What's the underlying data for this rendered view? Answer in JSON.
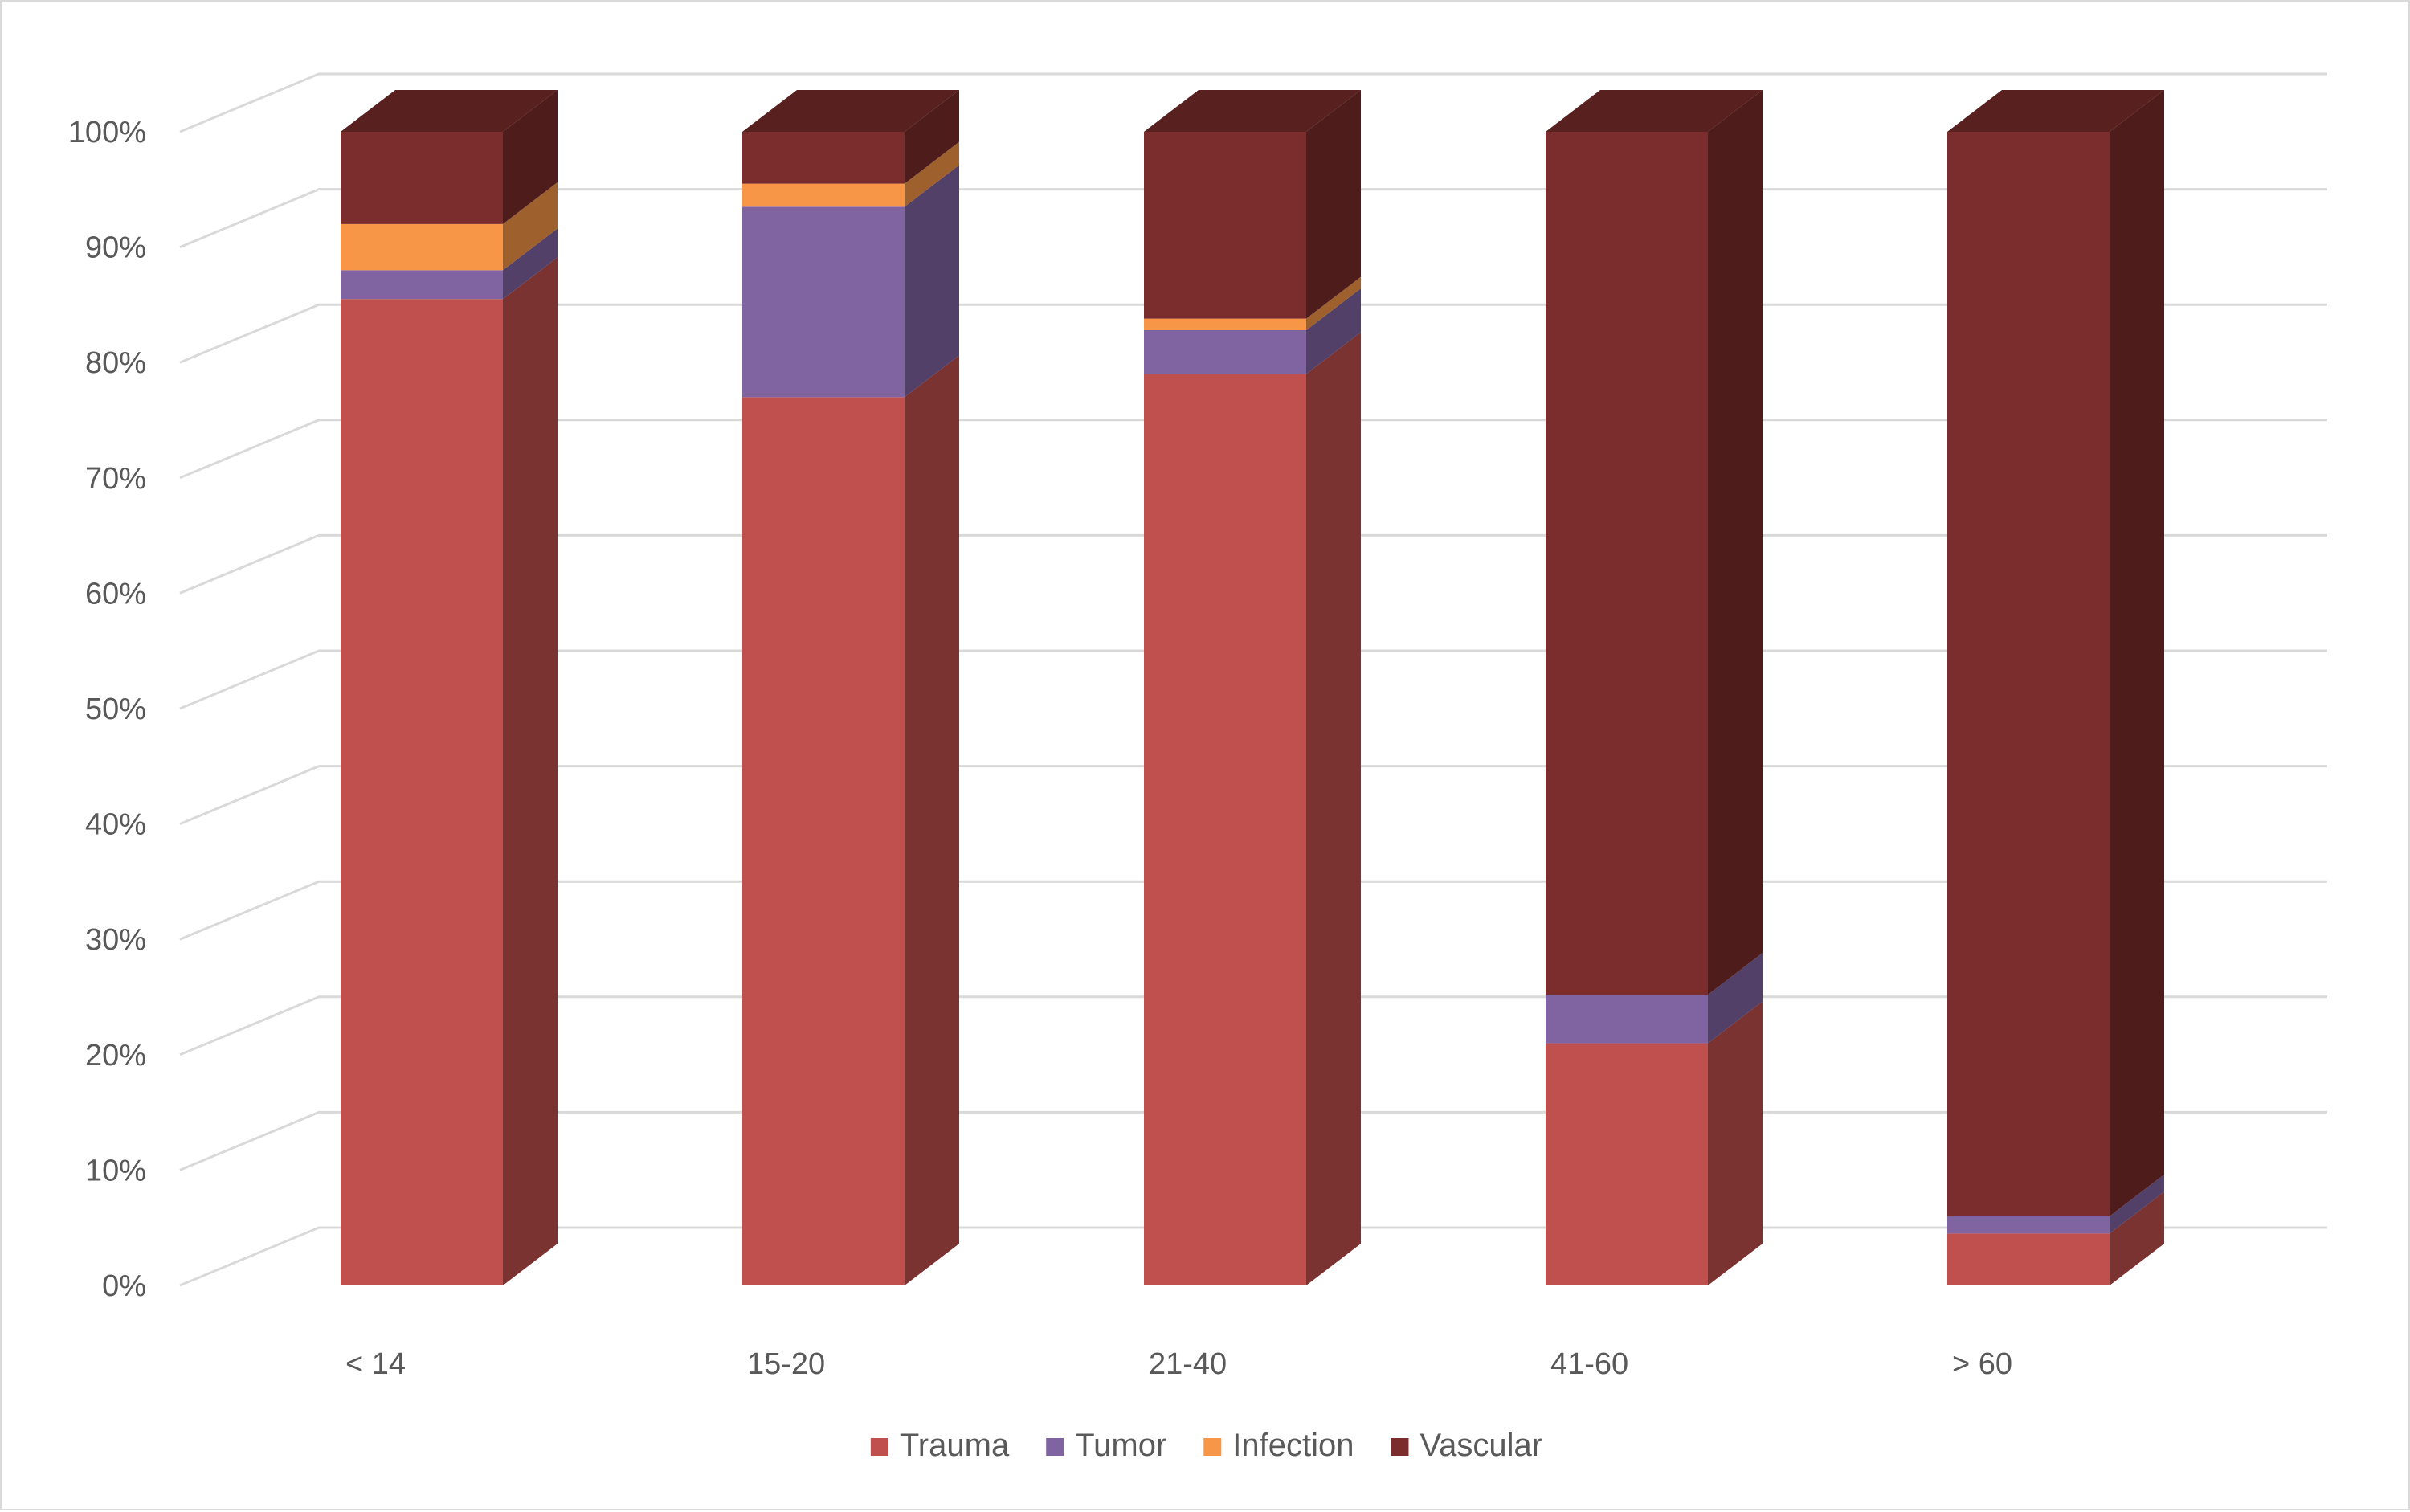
{
  "chart_data": {
    "type": "bar",
    "stacked": true,
    "three_d": true,
    "percent_stacked": true,
    "title": "",
    "xlabel": "",
    "ylabel": "",
    "categories": [
      "< 14",
      "15-20",
      "21-40",
      "41-60",
      "> 60"
    ],
    "y_ticks": [
      "0%",
      "10%",
      "20%",
      "30%",
      "40%",
      "50%",
      "60%",
      "70%",
      "80%",
      "90%",
      "100%"
    ],
    "ylim": [
      0,
      100
    ],
    "grid": true,
    "legend_position": "bottom",
    "series": [
      {
        "name": "Trauma",
        "color": "#c0504d",
        "values": [
          85.5,
          77.0,
          79.0,
          21.0,
          4.5
        ]
      },
      {
        "name": "Tumor",
        "color": "#8064a2",
        "values": [
          2.5,
          16.5,
          3.8,
          4.2,
          1.5
        ]
      },
      {
        "name": "Infection",
        "color": "#f79646",
        "values": [
          4.0,
          2.0,
          1.0,
          0.0,
          0.0
        ]
      },
      {
        "name": "Vascular",
        "color": "#7b2c2c",
        "values": [
          8.0,
          4.5,
          16.2,
          74.8,
          94.0
        ]
      }
    ]
  }
}
